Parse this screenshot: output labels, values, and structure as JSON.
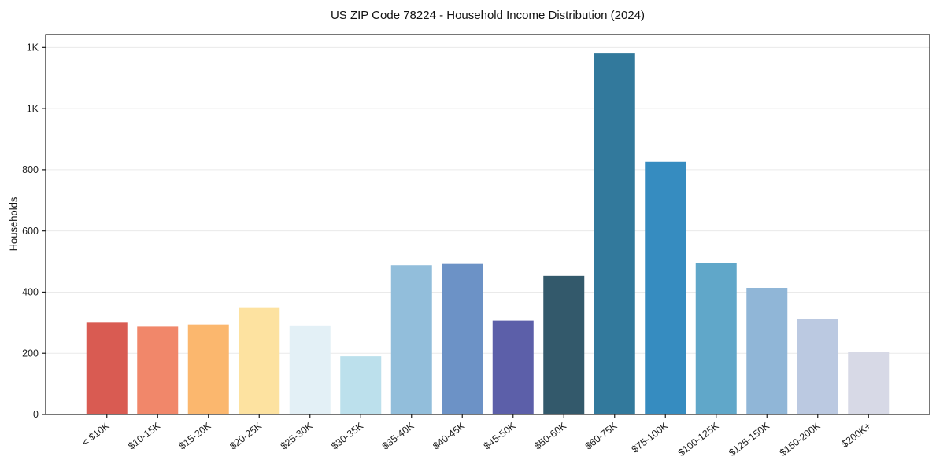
{
  "chart_data": {
    "type": "bar",
    "title": "US ZIP Code 78224 - Household Income Distribution (2024)",
    "xlabel": "",
    "ylabel": "Households",
    "categories": [
      "< $10K",
      "$10-15K",
      "$15-20K",
      "$20-25K",
      "$25-30K",
      "$30-35K",
      "$35-40K",
      "$40-45K",
      "$45-50K",
      "$50-60K",
      "$60-75K",
      "$75-100K",
      "$100-125K",
      "$125-150K",
      "$150-200K",
      "$200K+"
    ],
    "values": [
      300,
      287,
      294,
      348,
      291,
      190,
      488,
      492,
      307,
      453,
      1180,
      826,
      496,
      414,
      313,
      205
    ],
    "bar_colors": [
      "#d95b52",
      "#f1876a",
      "#fbb76e",
      "#fde2a0",
      "#e3f0f6",
      "#bce0ec",
      "#92bedb",
      "#6c92c6",
      "#5c5fa9",
      "#33596b",
      "#32799c",
      "#368cc0",
      "#60a7c9",
      "#90b6d7",
      "#bbc9e1",
      "#d7d9e6"
    ],
    "ylim": [
      0,
      1242
    ],
    "yticks": [
      {
        "value": 0,
        "label": "0"
      },
      {
        "value": 200,
        "label": "200"
      },
      {
        "value": 400,
        "label": "400"
      },
      {
        "value": 600,
        "label": "600"
      },
      {
        "value": 800,
        "label": "800"
      },
      {
        "value": 1000,
        "label": "1K"
      },
      {
        "value": 1200,
        "label": "1K"
      }
    ],
    "grid": "horizontal",
    "grid_color": "#eaeaea",
    "axis_color": "#1c1c1c",
    "legend": "none",
    "x_tick_rotation_deg": 38
  }
}
